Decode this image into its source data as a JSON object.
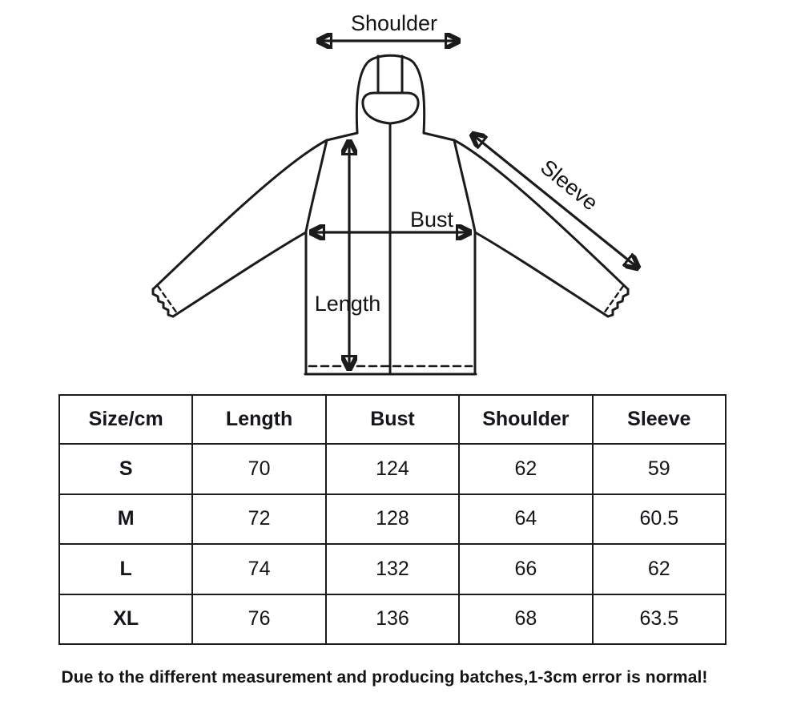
{
  "diagram": {
    "labels": {
      "shoulder": "Shoulder",
      "sleeve": "Sleeve",
      "bust": "Bust",
      "length": "Length"
    }
  },
  "table": {
    "headers": [
      "Size/cm",
      "Length",
      "Bust",
      "Shoulder",
      "Sleeve"
    ],
    "rows": [
      [
        "S",
        "70",
        "124",
        "62",
        "59"
      ],
      [
        "M",
        "72",
        "128",
        "64",
        "60.5"
      ],
      [
        "L",
        "74",
        "132",
        "66",
        "62"
      ],
      [
        "XL",
        "76",
        "136",
        "68",
        "63.5"
      ]
    ]
  },
  "note": "Due to the different measurement and producing batches,1-3cm error is normal!",
  "colors": {
    "line": "#1b1b1b",
    "text": "#141414",
    "background": "#ffffff"
  }
}
